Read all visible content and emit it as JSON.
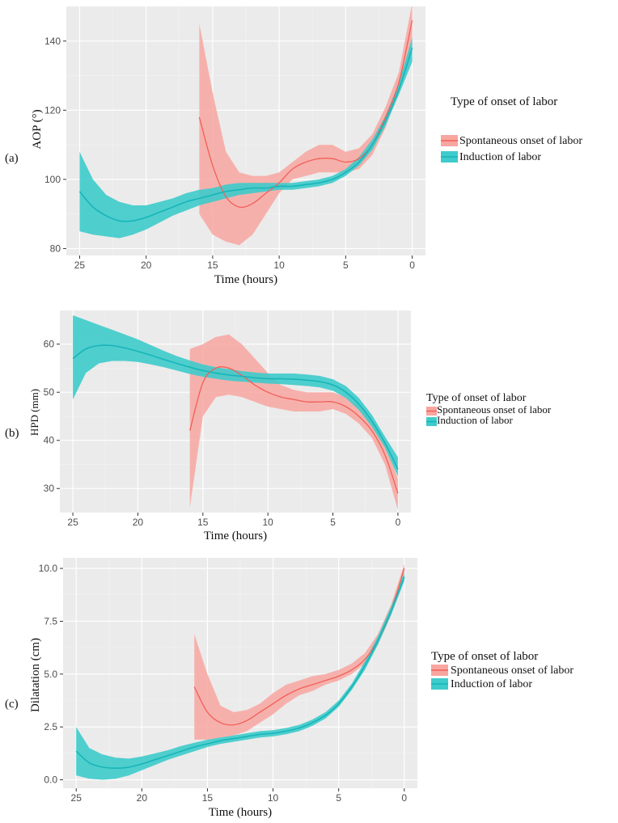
{
  "legend": {
    "title": "Type of onset of labor",
    "items": [
      {
        "label": "Spontaneous onset of labor",
        "fill": "#f8a6a0",
        "line": "#f25f58"
      },
      {
        "label": "Induction of labor",
        "fill": "#3ecbcb",
        "line": "#17b5b8"
      }
    ]
  },
  "chart_data": [
    {
      "panel": "(a)",
      "type": "line",
      "xlabel": "Time (hours)",
      "ylabel": "AOP (°)",
      "xlim": [
        26,
        -1
      ],
      "ylim": [
        78,
        150
      ],
      "xticks": [
        25,
        20,
        15,
        10,
        5,
        0
      ],
      "yticks": [
        80,
        100,
        120,
        140
      ],
      "ytick_labels": [
        "80",
        "100",
        "120",
        "140"
      ],
      "series": [
        {
          "name": "Spontaneous onset of labor",
          "x": [
            16,
            15,
            14,
            13,
            12,
            11,
            10,
            9,
            8,
            7,
            6,
            5,
            4,
            3,
            2,
            1,
            0
          ],
          "y": [
            118,
            104,
            95,
            92,
            93,
            96,
            99,
            103,
            105,
            106,
            106,
            105,
            106,
            110,
            118,
            128,
            146
          ],
          "lower": [
            90,
            84,
            82,
            81,
            84,
            90,
            96,
            100,
            101,
            102,
            102,
            102,
            103,
            107,
            115,
            126,
            138
          ],
          "upper": [
            145,
            125,
            108,
            102,
            101,
            101,
            102,
            105,
            108,
            110,
            110,
            108,
            109,
            113,
            121,
            131,
            151
          ]
        },
        {
          "name": "Induction of labor",
          "x": [
            25,
            24,
            23,
            22,
            21,
            20,
            19,
            18,
            17,
            16,
            15,
            14,
            13,
            12,
            11,
            10,
            9,
            8,
            7,
            6,
            5,
            4,
            3,
            2,
            1,
            0
          ],
          "y": [
            96.5,
            92,
            89.5,
            88,
            88,
            89,
            90.5,
            92,
            93.5,
            94.5,
            95.5,
            96.5,
            97,
            97.5,
            97.5,
            98,
            98,
            98.5,
            99,
            100,
            102,
            105,
            110,
            117,
            126,
            138
          ],
          "lower": [
            85,
            84,
            83.5,
            83,
            84,
            85.5,
            87.5,
            89.5,
            91,
            92.5,
            93.5,
            94.5,
            95.5,
            96,
            96.5,
            97,
            97,
            97.5,
            98,
            99,
            101,
            104,
            108.5,
            115.5,
            124.5,
            134
          ],
          "upper": [
            108,
            100,
            95.5,
            93.5,
            92.5,
            92.5,
            93.5,
            94.5,
            96,
            97,
            97.5,
            98.5,
            99,
            99,
            99,
            99,
            99,
            99.5,
            100,
            101,
            103,
            106.5,
            111.5,
            118.5,
            128,
            141
          ]
        }
      ]
    },
    {
      "panel": "(b)",
      "type": "line",
      "xlabel": "Time (hours)",
      "ylabel": "HPD (mm)",
      "xlim": [
        26,
        -1
      ],
      "ylim": [
        25,
        67
      ],
      "xticks": [
        25,
        20,
        15,
        10,
        5,
        0
      ],
      "yticks": [
        30,
        40,
        50,
        60
      ],
      "ytick_labels": [
        "30",
        "40",
        "50",
        "60"
      ],
      "series": [
        {
          "name": "Spontaneous onset of labor",
          "x": [
            16,
            15,
            14,
            13,
            12,
            11,
            10,
            9,
            8,
            7,
            6,
            5,
            4,
            3,
            2,
            1,
            0
          ],
          "y": [
            42,
            52,
            55,
            55,
            53.5,
            51.5,
            50,
            49,
            48.5,
            48,
            48,
            48,
            47,
            45,
            42,
            37,
            29
          ],
          "lower": [
            26,
            45,
            49,
            49.5,
            49,
            48,
            47,
            46.5,
            46,
            46,
            46,
            46.5,
            45.5,
            43.5,
            40.5,
            35,
            25.5
          ],
          "upper": [
            59,
            60,
            61.5,
            62,
            60,
            57,
            54,
            51.5,
            50.5,
            50,
            50,
            50,
            49,
            47,
            44,
            39.5,
            32
          ]
        },
        {
          "name": "Induction of labor",
          "x": [
            25,
            24,
            23,
            22,
            21,
            20,
            19,
            18,
            17,
            16,
            15,
            14,
            13,
            12,
            11,
            10,
            9,
            8,
            7,
            6,
            5,
            4,
            3,
            2,
            1,
            0
          ],
          "y": [
            57,
            59,
            59.7,
            59.7,
            59.2,
            58.5,
            57.7,
            56.8,
            56,
            55.2,
            54.5,
            54,
            53.6,
            53.3,
            53,
            52.8,
            52.8,
            52.7,
            52.5,
            52.2,
            51.5,
            50,
            47.5,
            44,
            39.5,
            34
          ],
          "lower": [
            48.5,
            54,
            56,
            56.5,
            56.5,
            56.3,
            55.8,
            55.2,
            54.5,
            53.8,
            53.2,
            52.8,
            52.4,
            52.2,
            52,
            51.8,
            51.7,
            51.5,
            51.3,
            51,
            50.3,
            48.8,
            46.3,
            42.8,
            38.5,
            32.5
          ],
          "upper": [
            66,
            65,
            64,
            63,
            62,
            61,
            59.8,
            58.6,
            57.5,
            56.6,
            55.8,
            55.2,
            54.8,
            54.4,
            54.1,
            53.9,
            53.9,
            53.9,
            53.7,
            53.4,
            52.7,
            51.3,
            48.8,
            45.3,
            40.8,
            36.5
          ]
        }
      ]
    },
    {
      "panel": "(c)",
      "type": "line",
      "xlabel": "Time (hours)",
      "ylabel": "Dilatation (cm)",
      "xlim": [
        26,
        -1
      ],
      "ylim": [
        -0.4,
        10.5
      ],
      "xticks": [
        25,
        20,
        15,
        10,
        5,
        0
      ],
      "yticks": [
        0,
        2.5,
        5,
        7.5,
        10
      ],
      "ytick_labels": [
        "0.0",
        "2.5",
        "5.0",
        "7.5",
        "10.0"
      ],
      "series": [
        {
          "name": "Spontaneous onset of labor",
          "x": [
            16,
            15,
            14,
            13,
            12,
            11,
            10,
            9,
            8,
            7,
            6,
            5,
            4,
            3,
            2,
            1,
            0
          ],
          "y": [
            4.4,
            3.2,
            2.7,
            2.6,
            2.8,
            3.2,
            3.6,
            4.0,
            4.3,
            4.5,
            4.7,
            4.9,
            5.2,
            5.7,
            6.6,
            8.0,
            10.0
          ],
          "lower": [
            1.9,
            1.9,
            2.0,
            2.1,
            2.3,
            2.7,
            3.1,
            3.6,
            4.0,
            4.2,
            4.5,
            4.7,
            5.0,
            5.5,
            6.4,
            7.8,
            9.8
          ],
          "upper": [
            6.9,
            5.0,
            3.5,
            3.2,
            3.3,
            3.6,
            4.1,
            4.5,
            4.7,
            4.9,
            5.0,
            5.2,
            5.5,
            6.0,
            6.9,
            8.3,
            10.2
          ]
        },
        {
          "name": "Induction of labor",
          "x": [
            25,
            24,
            23,
            22,
            21,
            20,
            19,
            18,
            17,
            16,
            15,
            14,
            13,
            12,
            11,
            10,
            9,
            8,
            7,
            6,
            5,
            4,
            3,
            2,
            1,
            0
          ],
          "y": [
            1.35,
            0.8,
            0.6,
            0.55,
            0.6,
            0.75,
            0.95,
            1.15,
            1.35,
            1.55,
            1.7,
            1.85,
            1.95,
            2.05,
            2.15,
            2.2,
            2.3,
            2.45,
            2.7,
            3.05,
            3.6,
            4.4,
            5.4,
            6.6,
            8.0,
            9.6
          ],
          "lower": [
            0.2,
            0.05,
            0.0,
            0.05,
            0.2,
            0.45,
            0.7,
            0.95,
            1.15,
            1.35,
            1.55,
            1.7,
            1.8,
            1.9,
            2.0,
            2.05,
            2.15,
            2.3,
            2.55,
            2.9,
            3.45,
            4.25,
            5.2,
            6.4,
            7.8,
            9.4
          ],
          "upper": [
            2.5,
            1.5,
            1.2,
            1.05,
            1.0,
            1.1,
            1.25,
            1.4,
            1.6,
            1.75,
            1.9,
            2.0,
            2.1,
            2.2,
            2.3,
            2.35,
            2.45,
            2.6,
            2.85,
            3.2,
            3.75,
            4.55,
            5.6,
            6.8,
            8.2,
            9.8
          ]
        }
      ]
    }
  ]
}
